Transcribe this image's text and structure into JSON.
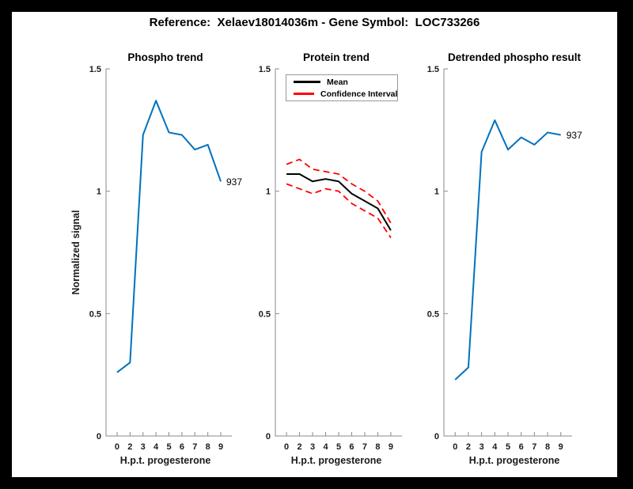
{
  "figure": {
    "title": "Reference:  Xelaev18014036m - Gene Symbol:  LOC733266"
  },
  "colors": {
    "background": "#000000",
    "canvas": "#FFFFFF",
    "line_blue": "#0072BD",
    "mean_black": "#000000",
    "ci_red": "#FF0000",
    "axis": "#8a8a8a",
    "tick_label": "#1a1a1a"
  },
  "chart_data": [
    {
      "type": "line",
      "title": "Phospho trend",
      "xlabel": "H.p.t. progesterone",
      "ylabel": "Normalized signal",
      "x_categories": [
        "0",
        "2",
        "3",
        "4",
        "5",
        "6",
        "7",
        "8",
        "9"
      ],
      "ylim": [
        0,
        1.5
      ],
      "yticks": [
        {
          "value": 0,
          "label": "0"
        },
        {
          "value": 0.5,
          "label": "0.5"
        },
        {
          "value": 1,
          "label": "1"
        },
        {
          "value": 1.5,
          "label": "1.5"
        }
      ],
      "grid": false,
      "legend": null,
      "series": [
        {
          "name": "937",
          "color": "#0072BD",
          "style": "solid",
          "values": [
            0.26,
            0.3,
            1.23,
            1.37,
            1.24,
            1.23,
            1.17,
            1.19,
            1.04
          ]
        }
      ],
      "annotation": {
        "text": "937",
        "at": "end-of-line"
      }
    },
    {
      "type": "line",
      "title": "Protein trend",
      "xlabel": "H.p.t. progesterone",
      "ylabel": "",
      "x_categories": [
        "0",
        "2",
        "3",
        "4",
        "5",
        "6",
        "7",
        "8",
        "9"
      ],
      "ylim": [
        0,
        1.5
      ],
      "yticks": [
        {
          "value": 0,
          "label": "0"
        },
        {
          "value": 0.5,
          "label": "0.5"
        },
        {
          "value": 1,
          "label": "1"
        },
        {
          "value": 1.5,
          "label": "1.5"
        }
      ],
      "grid": false,
      "legend": {
        "position": "top-left",
        "entries": [
          {
            "label": "Mean",
            "color": "#000000",
            "style": "solid"
          },
          {
            "label": "Confidence Interval",
            "color": "#FF0000",
            "style": "dashed"
          }
        ]
      },
      "series": [
        {
          "name": "Mean",
          "color": "#000000",
          "style": "solid",
          "values": [
            1.07,
            1.07,
            1.04,
            1.05,
            1.04,
            0.99,
            0.96,
            0.93,
            0.84
          ]
        },
        {
          "name": "Confidence Interval upper",
          "color": "#FF0000",
          "style": "dashed",
          "values": [
            1.11,
            1.13,
            1.09,
            1.08,
            1.07,
            1.03,
            1.0,
            0.96,
            0.87
          ]
        },
        {
          "name": "Confidence Interval lower",
          "color": "#FF0000",
          "style": "dashed",
          "values": [
            1.03,
            1.01,
            0.99,
            1.01,
            1.0,
            0.95,
            0.92,
            0.89,
            0.81
          ]
        }
      ],
      "annotation": null
    },
    {
      "type": "line",
      "title": "Detrended phospho result",
      "xlabel": "H.p.t. progesterone",
      "ylabel": "",
      "x_categories": [
        "0",
        "2",
        "3",
        "4",
        "5",
        "6",
        "7",
        "8",
        "9"
      ],
      "ylim": [
        0,
        1.5
      ],
      "yticks": [
        {
          "value": 0,
          "label": "0"
        },
        {
          "value": 0.5,
          "label": "0.5"
        },
        {
          "value": 1,
          "label": "1"
        },
        {
          "value": 1.5,
          "label": "1.5"
        }
      ],
      "grid": false,
      "legend": null,
      "series": [
        {
          "name": "937",
          "color": "#0072BD",
          "style": "solid",
          "values": [
            0.23,
            0.28,
            1.16,
            1.29,
            1.17,
            1.22,
            1.19,
            1.24,
            1.23
          ]
        }
      ],
      "annotation": {
        "text": "937",
        "at": "end-of-line"
      }
    }
  ]
}
